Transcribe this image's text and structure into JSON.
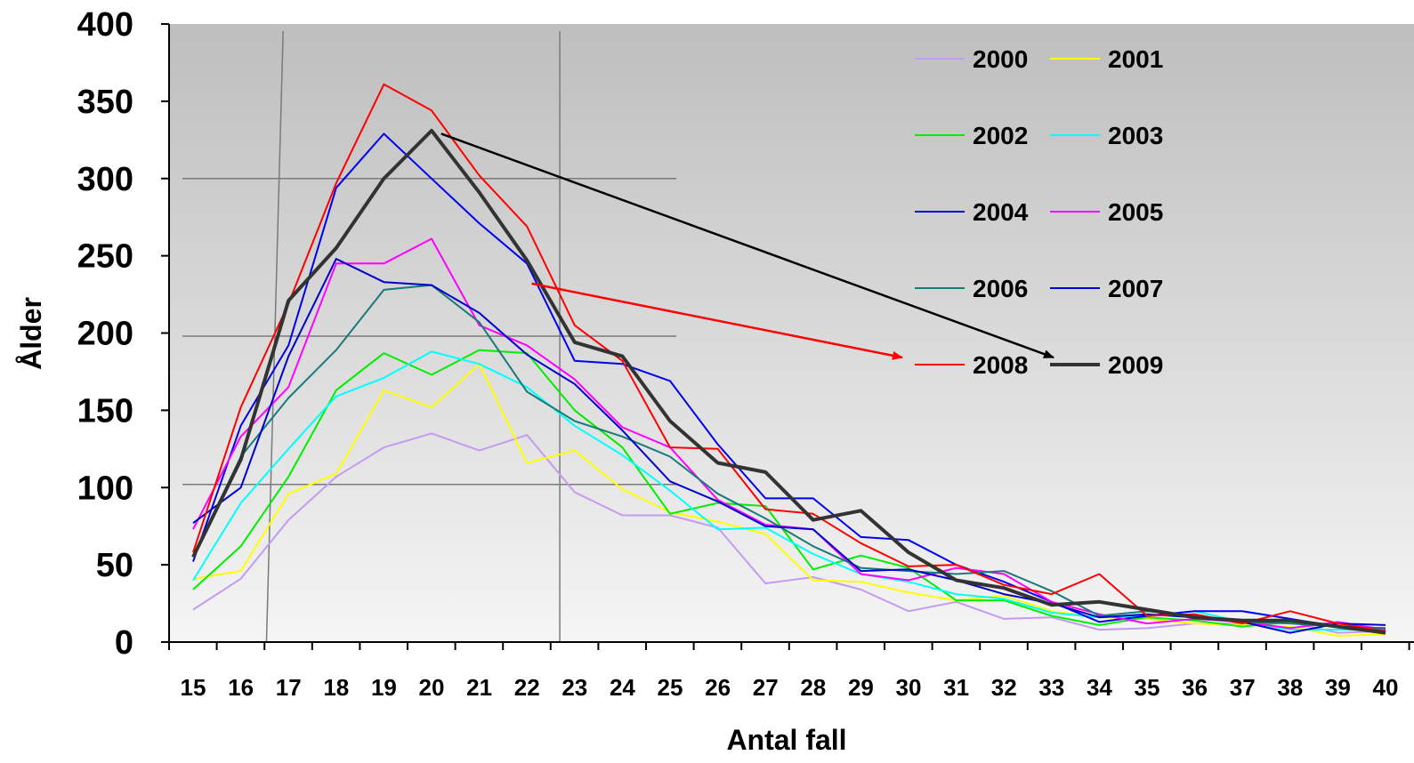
{
  "chart_data": {
    "type": "line",
    "title": "",
    "xlabel": "Antal fall",
    "ylabel": "Ålder",
    "ylim": [
      0,
      400
    ],
    "yticks": [
      "0",
      "50",
      "100",
      "150",
      "200",
      "250",
      "300",
      "350",
      "400"
    ],
    "x": [
      15,
      16,
      17,
      18,
      19,
      20,
      21,
      22,
      23,
      24,
      25,
      26,
      27,
      28,
      29,
      30,
      31,
      32,
      33,
      34,
      35,
      36,
      37,
      38,
      39,
      40
    ],
    "grid": "partial",
    "legend_position": "top-right",
    "background": "gradient-grey",
    "series": [
      {
        "name": "2000",
        "color": "#c39bf0",
        "width": 2,
        "values": [
          21,
          41,
          79,
          107,
          126,
          135,
          124,
          134,
          97,
          82,
          82,
          74,
          38,
          42,
          34,
          20,
          26,
          15,
          16,
          8,
          9,
          12,
          12,
          13,
          6,
          7
        ]
      },
      {
        "name": "2001",
        "color": "#ffff00",
        "width": 2,
        "values": [
          41,
          46,
          96,
          109,
          163,
          152,
          180,
          116,
          124,
          99,
          84,
          78,
          70,
          40,
          39,
          32,
          27,
          30,
          20,
          16,
          15,
          12,
          11,
          10,
          4,
          5
        ]
      },
      {
        "name": "2002",
        "color": "#00ee00",
        "width": 2,
        "values": [
          34,
          62,
          107,
          163,
          187,
          173,
          189,
          187,
          150,
          126,
          83,
          90,
          88,
          47,
          56,
          48,
          27,
          27,
          17,
          11,
          16,
          14,
          10,
          13,
          10,
          8
        ]
      },
      {
        "name": "2003",
        "color": "#00ffff",
        "width": 2,
        "values": [
          40,
          90,
          125,
          159,
          171,
          188,
          180,
          165,
          140,
          121,
          98,
          73,
          74,
          57,
          44,
          39,
          31,
          28,
          19,
          16,
          17,
          20,
          13,
          8,
          8,
          8
        ]
      },
      {
        "name": "2004",
        "color": "#0000ee",
        "width": 2,
        "values": [
          52,
          140,
          192,
          294,
          329,
          300,
          271,
          245,
          182,
          180,
          169,
          128,
          93,
          93,
          68,
          66,
          50,
          39,
          26,
          13,
          17,
          20,
          20,
          15,
          10,
          9
        ]
      },
      {
        "name": "2005",
        "color": "#ff00ff",
        "width": 2,
        "values": [
          73,
          133,
          165,
          245,
          245,
          261,
          205,
          192,
          170,
          139,
          126,
          92,
          76,
          73,
          44,
          40,
          48,
          44,
          26,
          18,
          12,
          15,
          13,
          9,
          13,
          8
        ]
      },
      {
        "name": "2006",
        "color": "#1a7a7a",
        "width": 2,
        "values": [
          55,
          120,
          158,
          189,
          228,
          231,
          207,
          162,
          143,
          133,
          120,
          96,
          80,
          62,
          48,
          46,
          44,
          46,
          33,
          17,
          20,
          17,
          13,
          12,
          10,
          9
        ]
      },
      {
        "name": "2007",
        "color": "#0000cc",
        "width": 2,
        "values": [
          77,
          100,
          185,
          248,
          233,
          231,
          213,
          186,
          167,
          137,
          104,
          91,
          75,
          73,
          46,
          47,
          40,
          31,
          25,
          16,
          18,
          16,
          13,
          6,
          12,
          11
        ]
      },
      {
        "name": "2008",
        "color": "#ff0000",
        "width": 2,
        "values": [
          58,
          152,
          219,
          297,
          361,
          344,
          302,
          269,
          205,
          182,
          126,
          125,
          86,
          83,
          64,
          49,
          50,
          37,
          31,
          44,
          17,
          18,
          12,
          20,
          12,
          7
        ]
      },
      {
        "name": "2009",
        "color": "#333333",
        "width": 4,
        "values": [
          55,
          118,
          221,
          255,
          300,
          331,
          291,
          247,
          194,
          185,
          143,
          116,
          110,
          79,
          85,
          58,
          40,
          35,
          24,
          26,
          21,
          16,
          14,
          14,
          10,
          6
        ]
      }
    ],
    "annotations": [
      {
        "type": "arrow",
        "color": "#000000",
        "from": {
          "x": 20.2,
          "y": 329
        },
        "to_legend": "2009"
      },
      {
        "type": "arrow",
        "color": "#ff0000",
        "from": {
          "x": 22.1,
          "y": 232
        },
        "to_legend": "2008"
      }
    ],
    "reference_lines": [
      {
        "orientation": "horizontal",
        "y": 300,
        "x_range": [
          15,
          25
        ]
      },
      {
        "orientation": "horizontal",
        "y": 198,
        "x_range": [
          15,
          25
        ]
      },
      {
        "orientation": "horizontal",
        "y": 102,
        "x_range": [
          15,
          25
        ]
      },
      {
        "orientation": "vertical",
        "x_top": 17,
        "x_bottom": 16.65
      },
      {
        "orientation": "vertical",
        "x_top": 22.8,
        "x_bottom": 22.8
      }
    ]
  }
}
